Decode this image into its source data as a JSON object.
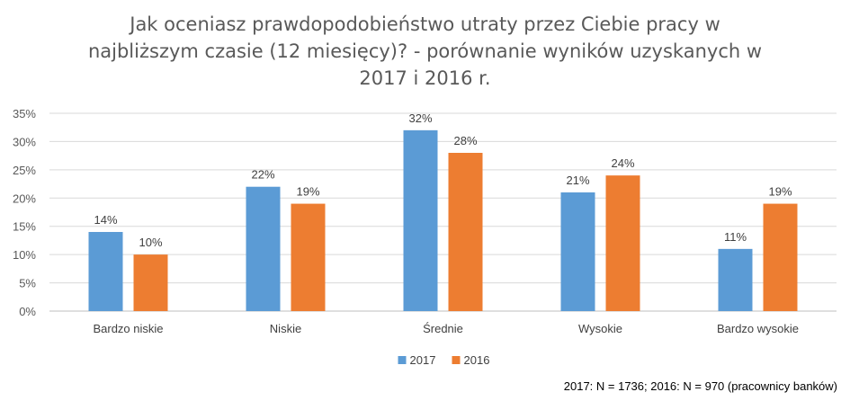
{
  "title_lines": [
    "Jak oceniasz prawdopodobieństwo utraty przez Ciebie pracy w",
    "najbliższym czasie (12 miesięcy)? - porównanie wyników uzyskanych w",
    "2017 i 2016 r."
  ],
  "note": "2017: N = 1736; 2016: N = 970 (pracownicy banków)",
  "chart_data": {
    "type": "bar",
    "title": "Jak oceniasz prawdopodobieństwo utraty przez Ciebie pracy w najbliższym czasie (12 miesięcy)? - porównanie wyników uzyskanych w 2017 i 2016 r.",
    "categories": [
      "Bardzo niskie",
      "Niskie",
      "Średnie",
      "Wysokie",
      "Bardzo wysokie"
    ],
    "series": [
      {
        "name": "2017",
        "values": [
          14,
          22,
          32,
          21,
          11
        ],
        "color": "#5B9BD5"
      },
      {
        "name": "2016",
        "values": [
          10,
          19,
          28,
          24,
          19
        ],
        "color": "#ED7D31"
      }
    ],
    "value_suffix": "%",
    "ylim": [
      0,
      35
    ],
    "yticks": [
      "0%",
      "5%",
      "10%",
      "15%",
      "20%",
      "25%",
      "30%",
      "35%"
    ],
    "grid": true,
    "legend": "bottom-center",
    "xlabel": "",
    "ylabel": ""
  }
}
